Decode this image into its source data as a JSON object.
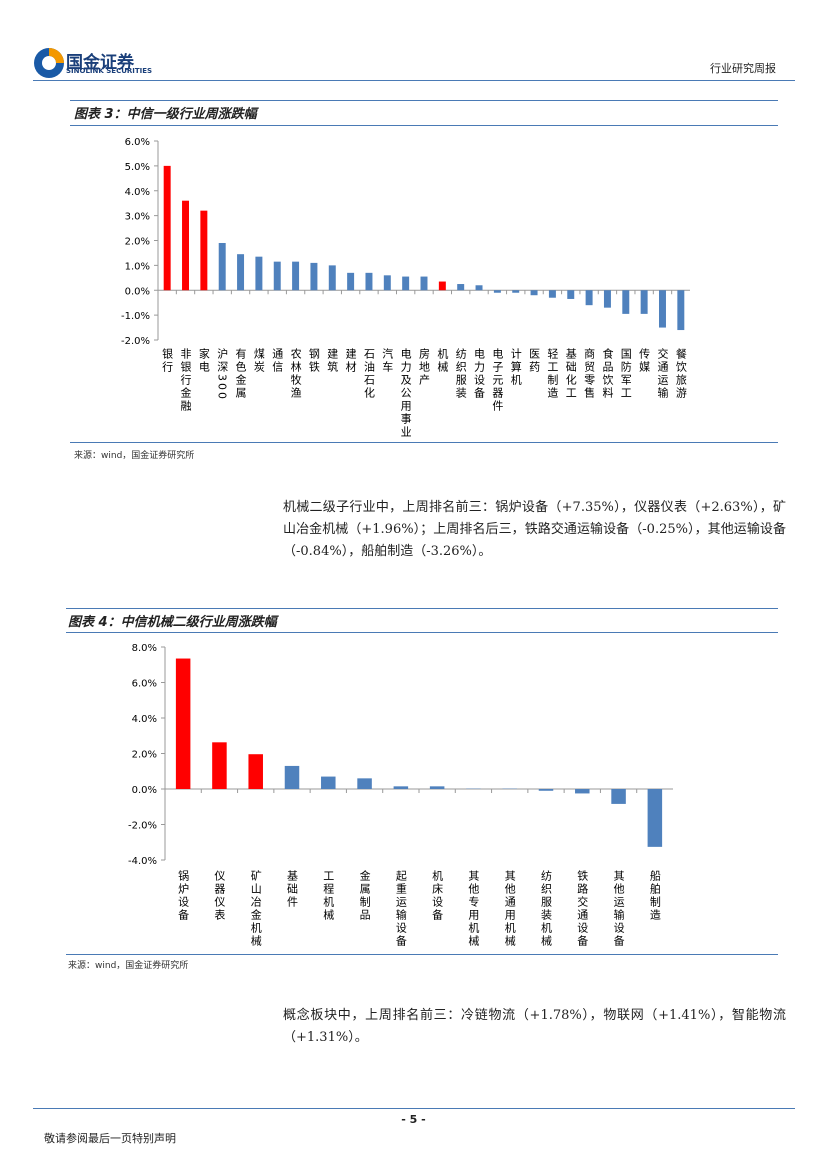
{
  "header": {
    "logo_cn": "国金证券",
    "logo_en": "SINOLINK SECURITIES",
    "report_type": "行业研究周报"
  },
  "chart_data": [
    {
      "type": "bar",
      "title": "图表 3：中信一级行业周涨跌幅",
      "categories": [
        "银行",
        "非银行金融",
        "家电",
        "沪深300",
        "有色金属",
        "煤炭",
        "通信",
        "农林牧渔",
        "钢铁",
        "建筑",
        "建材",
        "石油石化",
        "汽车",
        "电力及公用事业",
        "房地产",
        "机械",
        "纺织服装",
        "电力设备",
        "电子元器件",
        "计算机",
        "医药",
        "轻工制造",
        "基础化工",
        "商贸零售",
        "食品饮料",
        "国防军工",
        "传媒",
        "交通运输",
        "餐饮旅游"
      ],
      "values": [
        5.0,
        3.6,
        3.2,
        1.9,
        1.45,
        1.35,
        1.15,
        1.15,
        1.1,
        1.0,
        0.7,
        0.7,
        0.6,
        0.55,
        0.55,
        0.35,
        0.25,
        0.2,
        -0.1,
        -0.1,
        -0.2,
        -0.3,
        -0.35,
        -0.6,
        -0.7,
        -0.95,
        -0.95,
        -1.5,
        -1.6
      ],
      "colors": [
        "#ff0000",
        "#ff0000",
        "#ff0000",
        "#4f81bd",
        "#4f81bd",
        "#4f81bd",
        "#4f81bd",
        "#4f81bd",
        "#4f81bd",
        "#4f81bd",
        "#4f81bd",
        "#4f81bd",
        "#4f81bd",
        "#4f81bd",
        "#4f81bd",
        "#ff0000",
        "#4f81bd",
        "#4f81bd",
        "#4f81bd",
        "#4f81bd",
        "#4f81bd",
        "#4f81bd",
        "#4f81bd",
        "#4f81bd",
        "#4f81bd",
        "#4f81bd",
        "#4f81bd",
        "#4f81bd",
        "#4f81bd"
      ],
      "ylim": [
        -2,
        6
      ],
      "yticks": [
        {
          "value": -2,
          "label": "-2.0%"
        },
        {
          "value": -1,
          "label": "-1.0%"
        },
        {
          "value": 0,
          "label": "0.0%"
        },
        {
          "value": 1,
          "label": "1.0%"
        },
        {
          "value": 2,
          "label": "2.0%"
        },
        {
          "value": 3,
          "label": "3.0%"
        },
        {
          "value": 4,
          "label": "4.0%"
        },
        {
          "value": 5,
          "label": "5.0%"
        },
        {
          "value": 6,
          "label": "6.0%"
        }
      ],
      "source": "来源：wind，国金证券研究所"
    },
    {
      "type": "bar",
      "title": "图表 4：中信机械二级行业周涨跌幅",
      "categories": [
        "锅炉设备",
        "仪器仪表",
        "矿山冶金机械",
        "基础件",
        "工程机械",
        "金属制品",
        "起重运输设备",
        "机床设备",
        "其他专用机械",
        "其他通用机械",
        "纺织服装机械",
        "铁路交通设备",
        "其他运输设备",
        "船舶制造"
      ],
      "values": [
        7.35,
        2.63,
        1.96,
        1.3,
        0.7,
        0.6,
        0.15,
        0.15,
        0.02,
        0.02,
        -0.1,
        -0.25,
        -0.84,
        -3.26
      ],
      "colors": [
        "#ff0000",
        "#ff0000",
        "#ff0000",
        "#4f81bd",
        "#4f81bd",
        "#4f81bd",
        "#4f81bd",
        "#4f81bd",
        "#4f81bd",
        "#4f81bd",
        "#4f81bd",
        "#4f81bd",
        "#4f81bd",
        "#4f81bd"
      ],
      "ylim": [
        -4,
        8
      ],
      "yticks": [
        {
          "value": -4,
          "label": "-4.0%"
        },
        {
          "value": -2,
          "label": "-2.0%"
        },
        {
          "value": 0,
          "label": "0.0%"
        },
        {
          "value": 2,
          "label": "2.0%"
        },
        {
          "value": 4,
          "label": "4.0%"
        },
        {
          "value": 6,
          "label": "6.0%"
        },
        {
          "value": 8,
          "label": "8.0%"
        }
      ],
      "source": "来源：wind，国金证券研究所"
    }
  ],
  "paragraphs": [
    "机械二级子行业中，上周排名前三：锅炉设备（+7.35%），仪器仪表（+2.63%），矿山冶金机械（+1.96%）；上周排名后三，铁路交通运输设备（-0.25%），其他运输设备（-0.84%），船舶制造（-3.26%）。",
    "概念板块中，上周排名前三：冷链物流（+1.78%），物联网（+1.41%），智能物流（+1.31%）。"
  ],
  "footer": {
    "page": "- 5 -",
    "disclaimer": "敬请参阅最后一页特别声明"
  }
}
